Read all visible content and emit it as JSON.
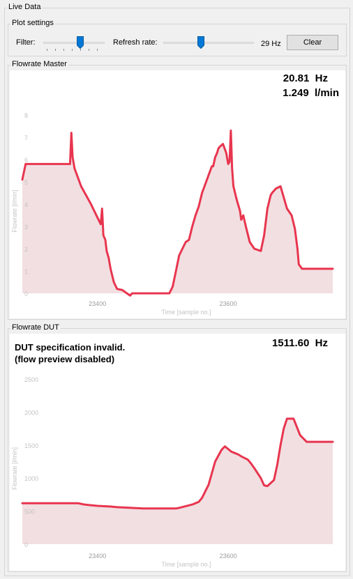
{
  "live_data": {
    "title": "Live Data"
  },
  "plot_settings": {
    "title": "Plot settings",
    "filter_label": "Filter:",
    "filter_level": 0.62,
    "refresh_label": "Refresh rate:",
    "refresh_level": 0.41,
    "refresh_value": "29 Hz",
    "clear_label": "Clear"
  },
  "master": {
    "title": "Flowrate Master",
    "freq": "20.81  Hz",
    "flow": "1.249  l/min"
  },
  "dut": {
    "title": "Flowrate DUT",
    "message_line1": "DUT specification invalid.",
    "message_line2": "(flow preview disabled)",
    "freq": "1511.60  Hz"
  },
  "colors": {
    "series": "#e8354f",
    "fill": "#f2dfe1",
    "axis_text": "#c3c3c3"
  },
  "chart_data": [
    {
      "type": "area",
      "title": "",
      "xlabel": "Time [sample no.]",
      "ylabel": "Flowrate [l/min]",
      "xlim": [
        23285,
        23760
      ],
      "ylim": [
        0,
        8
      ],
      "xticks": [
        23400,
        23600
      ],
      "yticks": [
        0,
        1,
        2,
        3,
        4,
        5,
        6,
        7,
        8
      ],
      "grid": false,
      "series": [
        {
          "x": [
            23285,
            23290,
            23358,
            23360,
            23362,
            23365,
            23375,
            23390,
            23400,
            23405,
            23407,
            23409,
            23412,
            23414,
            23417,
            23420,
            23425,
            23430,
            23438,
            23445,
            23450,
            23453,
            23470,
            23510,
            23515,
            23520,
            23525,
            23535,
            23540,
            23545,
            23550,
            23555,
            23560,
            23570,
            23575,
            23577,
            23580,
            23583,
            23585,
            23588,
            23592,
            23597,
            23600,
            23602,
            23604,
            23606,
            23608,
            23613,
            23618,
            23620,
            23623,
            23627,
            23633,
            23640,
            23650,
            23655,
            23660,
            23665,
            23667,
            23673,
            23680,
            23690,
            23697,
            23702,
            23706,
            23708,
            23713,
            23720,
            23760
          ],
          "y": [
            5.1,
            5.8,
            5.8,
            7.2,
            6.1,
            5.6,
            4.8,
            4.0,
            3.4,
            3.1,
            3.8,
            2.6,
            2.4,
            1.9,
            1.6,
            1.1,
            0.5,
            0.2,
            0.15,
            0.0,
            -0.1,
            0.0,
            0.0,
            0.0,
            0.3,
            1.0,
            1.7,
            2.3,
            2.4,
            3.0,
            3.5,
            3.9,
            4.5,
            5.3,
            5.7,
            5.7,
            6.1,
            6.3,
            6.5,
            6.6,
            6.7,
            6.3,
            5.8,
            5.9,
            7.3,
            5.6,
            4.8,
            4.2,
            3.7,
            3.3,
            3.5,
            3.0,
            2.3,
            2.0,
            1.9,
            2.6,
            3.8,
            4.4,
            4.5,
            4.7,
            4.8,
            3.8,
            3.5,
            2.9,
            2.0,
            1.3,
            1.1,
            1.1,
            1.1
          ]
        }
      ]
    },
    {
      "type": "area",
      "title": "",
      "xlabel": "Time [sample no.]",
      "ylabel": "Flowrate [l/min]",
      "xlim": [
        23285,
        23760
      ],
      "ylim": [
        0,
        2500
      ],
      "xticks": [
        23400,
        23600
      ],
      "yticks": [
        0,
        500,
        1000,
        1500,
        2000,
        2500
      ],
      "grid": false,
      "series": [
        {
          "x": [
            23285,
            23370,
            23380,
            23390,
            23400,
            23420,
            23430,
            23470,
            23500,
            23520,
            23525,
            23545,
            23550,
            23555,
            23560,
            23570,
            23580,
            23590,
            23595,
            23600,
            23605,
            23610,
            23615,
            23620,
            23630,
            23635,
            23640,
            23650,
            23655,
            23660,
            23670,
            23675,
            23680,
            23685,
            23690,
            23700,
            23710,
            23720,
            23760
          ],
          "y": [
            620,
            620,
            600,
            590,
            580,
            570,
            560,
            540,
            540,
            540,
            550,
            600,
            620,
            640,
            700,
            900,
            1250,
            1430,
            1480,
            1440,
            1400,
            1380,
            1360,
            1330,
            1280,
            1220,
            1150,
            1000,
            890,
            880,
            970,
            1200,
            1500,
            1750,
            1900,
            1900,
            1650,
            1550,
            1550
          ]
        }
      ]
    }
  ]
}
